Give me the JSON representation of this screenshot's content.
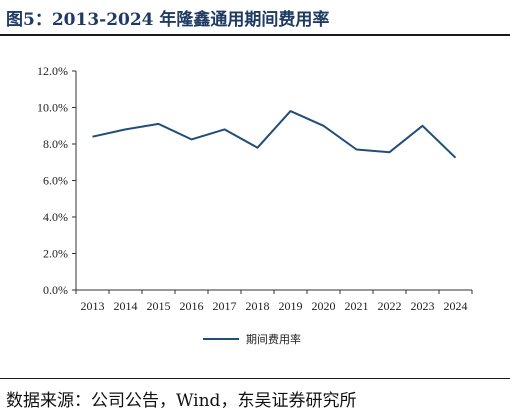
{
  "header": {
    "title": "图5：2013-2024 年隆鑫通用期间费用率"
  },
  "footer": {
    "source": "数据来源：公司公告，Wind，东吴证券研究所"
  },
  "chart_data": {
    "type": "line",
    "categories": [
      "2013",
      "2014",
      "2015",
      "2016",
      "2017",
      "2018",
      "2019",
      "2020",
      "2021",
      "2022",
      "2023",
      "2024"
    ],
    "series": [
      {
        "name": "期间费用率",
        "color": "#1f4e79",
        "values": [
          8.4,
          8.8,
          9.1,
          8.25,
          8.8,
          7.8,
          9.8,
          9.0,
          7.7,
          7.55,
          9.0,
          7.25
        ]
      }
    ],
    "yticks": [
      "0.0%",
      "2.0%",
      "4.0%",
      "6.0%",
      "8.0%",
      "10.0%",
      "12.0%"
    ],
    "ylim": [
      0,
      12
    ],
    "grid": false,
    "legend_position": "bottom"
  }
}
